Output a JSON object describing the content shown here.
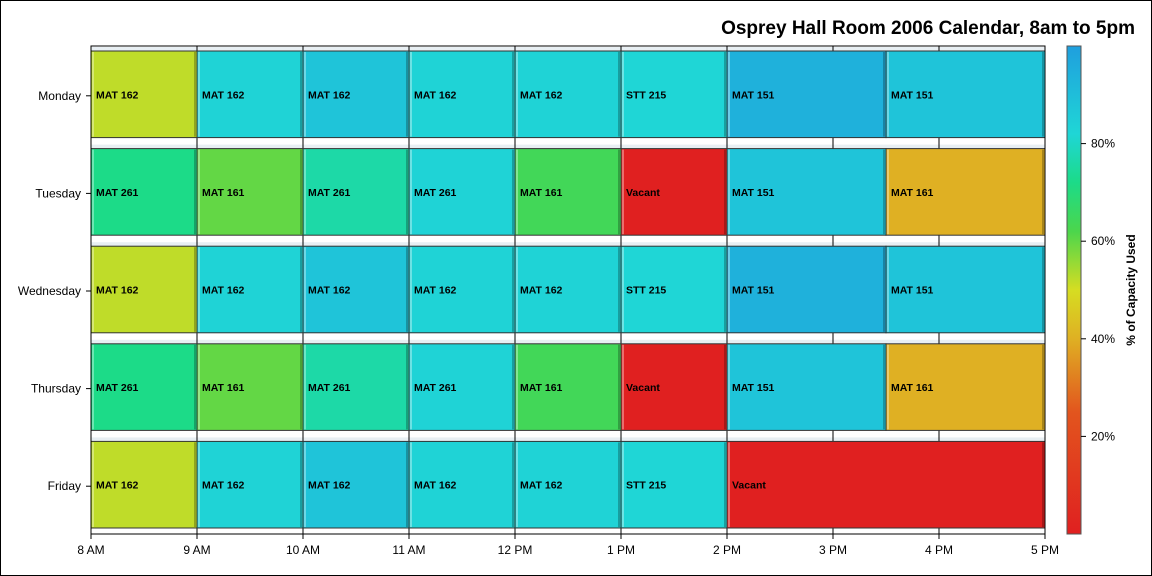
{
  "chart_data": {
    "type": "bar",
    "subtype": "horizontal-timeline-heatmap",
    "title": "Osprey Hall Room 2006 Calendar, 8am to 5pm",
    "x_ticks": [
      "8 AM",
      "9 AM",
      "10 AM",
      "11 AM",
      "12 PM",
      "1 PM",
      "2 PM",
      "3 PM",
      "4 PM",
      "5 PM"
    ],
    "x_range_hours": [
      8,
      17
    ],
    "days": [
      "Monday",
      "Tuesday",
      "Wednesday",
      "Thursday",
      "Friday"
    ],
    "colorbar": {
      "label": "% of Capacity Used",
      "ticks": [
        "20%",
        "40%",
        "60%",
        "80%"
      ],
      "range": [
        0,
        100
      ],
      "stops": [
        {
          "v": 0,
          "color": "#e02020"
        },
        {
          "v": 25,
          "color": "#e2551e"
        },
        {
          "v": 40,
          "color": "#dfb023"
        },
        {
          "v": 50,
          "color": "#d6dd22"
        },
        {
          "v": 62,
          "color": "#4cd64c"
        },
        {
          "v": 72,
          "color": "#1cdb88"
        },
        {
          "v": 82,
          "color": "#1fd6d6"
        },
        {
          "v": 100,
          "color": "#1f9fde"
        }
      ]
    },
    "events": [
      {
        "day": "Monday",
        "start": 8,
        "end": 9,
        "label": "MAT 162",
        "capacity": 52
      },
      {
        "day": "Monday",
        "start": 9,
        "end": 10,
        "label": "MAT 162",
        "capacity": 83
      },
      {
        "day": "Monday",
        "start": 10,
        "end": 11,
        "label": "MAT 162",
        "capacity": 88
      },
      {
        "day": "Monday",
        "start": 11,
        "end": 12,
        "label": "MAT 162",
        "capacity": 83
      },
      {
        "day": "Monday",
        "start": 12,
        "end": 13,
        "label": "MAT 162",
        "capacity": 83
      },
      {
        "day": "Monday",
        "start": 13,
        "end": 14,
        "label": "STT 215",
        "capacity": 82
      },
      {
        "day": "Monday",
        "start": 14,
        "end": 15.5,
        "label": "MAT 151",
        "capacity": 94
      },
      {
        "day": "Monday",
        "start": 15.5,
        "end": 17,
        "label": "MAT 151",
        "capacity": 88
      },
      {
        "day": "Tuesday",
        "start": 8,
        "end": 9,
        "label": "MAT 261",
        "capacity": 72
      },
      {
        "day": "Tuesday",
        "start": 9,
        "end": 10,
        "label": "MAT 161",
        "capacity": 60
      },
      {
        "day": "Tuesday",
        "start": 10,
        "end": 11,
        "label": "MAT 261",
        "capacity": 76
      },
      {
        "day": "Tuesday",
        "start": 11,
        "end": 12,
        "label": "MAT 261",
        "capacity": 83
      },
      {
        "day": "Tuesday",
        "start": 12,
        "end": 13,
        "label": "MAT 161",
        "capacity": 64
      },
      {
        "day": "Tuesday",
        "start": 13,
        "end": 14,
        "label": "Vacant",
        "capacity": 0
      },
      {
        "day": "Tuesday",
        "start": 14,
        "end": 15.5,
        "label": "MAT 151",
        "capacity": 88
      },
      {
        "day": "Tuesday",
        "start": 15.5,
        "end": 17,
        "label": "MAT 161",
        "capacity": 40
      },
      {
        "day": "Wednesday",
        "start": 8,
        "end": 9,
        "label": "MAT 162",
        "capacity": 52
      },
      {
        "day": "Wednesday",
        "start": 9,
        "end": 10,
        "label": "MAT 162",
        "capacity": 83
      },
      {
        "day": "Wednesday",
        "start": 10,
        "end": 11,
        "label": "MAT 162",
        "capacity": 88
      },
      {
        "day": "Wednesday",
        "start": 11,
        "end": 12,
        "label": "MAT 162",
        "capacity": 83
      },
      {
        "day": "Wednesday",
        "start": 12,
        "end": 13,
        "label": "MAT 162",
        "capacity": 83
      },
      {
        "day": "Wednesday",
        "start": 13,
        "end": 14,
        "label": "STT 215",
        "capacity": 82
      },
      {
        "day": "Wednesday",
        "start": 14,
        "end": 15.5,
        "label": "MAT 151",
        "capacity": 94
      },
      {
        "day": "Wednesday",
        "start": 15.5,
        "end": 17,
        "label": "MAT 151",
        "capacity": 88
      },
      {
        "day": "Thursday",
        "start": 8,
        "end": 9,
        "label": "MAT 261",
        "capacity": 72
      },
      {
        "day": "Thursday",
        "start": 9,
        "end": 10,
        "label": "MAT 161",
        "capacity": 60
      },
      {
        "day": "Thursday",
        "start": 10,
        "end": 11,
        "label": "MAT 261",
        "capacity": 76
      },
      {
        "day": "Thursday",
        "start": 11,
        "end": 12,
        "label": "MAT 261",
        "capacity": 83
      },
      {
        "day": "Thursday",
        "start": 12,
        "end": 13,
        "label": "MAT 161",
        "capacity": 64
      },
      {
        "day": "Thursday",
        "start": 13,
        "end": 14,
        "label": "Vacant",
        "capacity": 0
      },
      {
        "day": "Thursday",
        "start": 14,
        "end": 15.5,
        "label": "MAT 151",
        "capacity": 88
      },
      {
        "day": "Thursday",
        "start": 15.5,
        "end": 17,
        "label": "MAT 161",
        "capacity": 40
      },
      {
        "day": "Friday",
        "start": 8,
        "end": 9,
        "label": "MAT 162",
        "capacity": 52
      },
      {
        "day": "Friday",
        "start": 9,
        "end": 10,
        "label": "MAT 162",
        "capacity": 83
      },
      {
        "day": "Friday",
        "start": 10,
        "end": 11,
        "label": "MAT 162",
        "capacity": 88
      },
      {
        "day": "Friday",
        "start": 11,
        "end": 12,
        "label": "MAT 162",
        "capacity": 83
      },
      {
        "day": "Friday",
        "start": 12,
        "end": 13,
        "label": "MAT 162",
        "capacity": 83
      },
      {
        "day": "Friday",
        "start": 13,
        "end": 14,
        "label": "STT 215",
        "capacity": 82
      },
      {
        "day": "Friday",
        "start": 14,
        "end": 17,
        "label": "Vacant",
        "capacity": 0
      }
    ]
  }
}
